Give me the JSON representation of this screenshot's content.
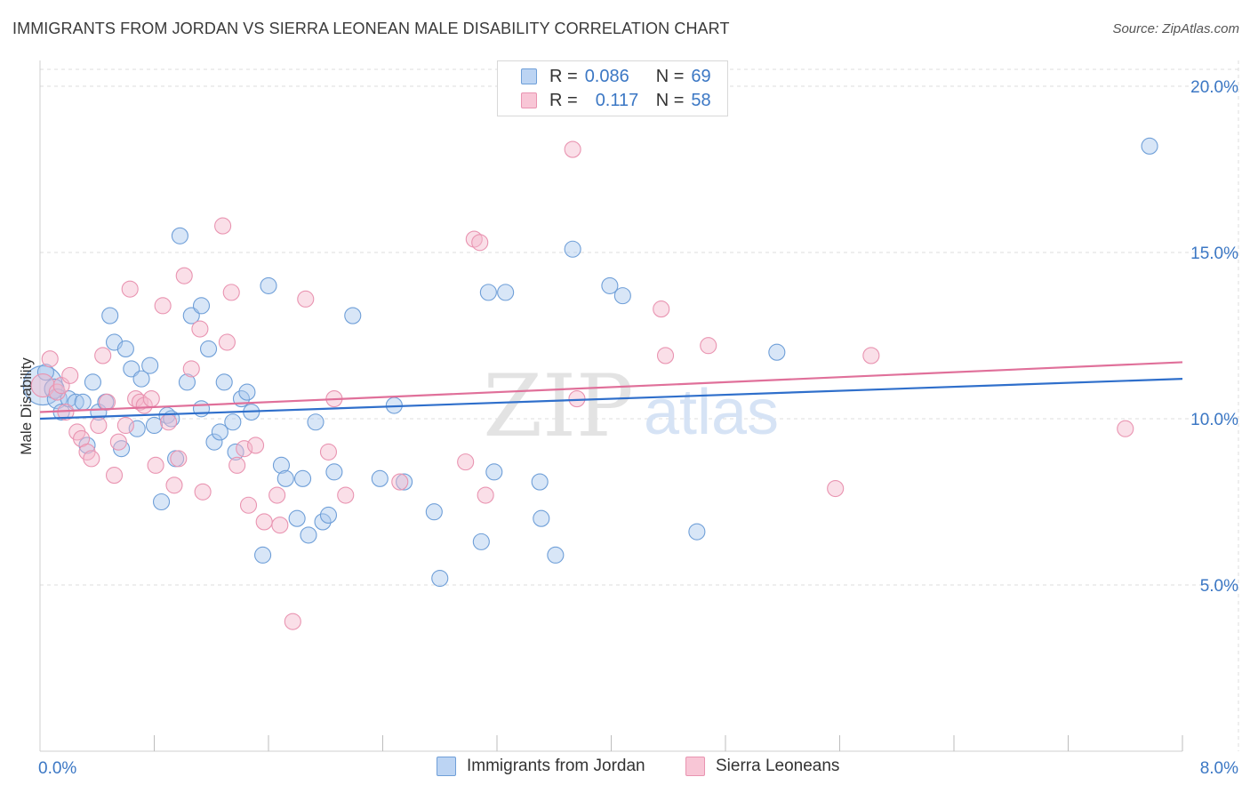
{
  "title": "IMMIGRANTS FROM JORDAN VS SIERRA LEONEAN MALE DISABILITY CORRELATION CHART",
  "source": "Source: ZipAtlas.com",
  "watermark": {
    "zip": "ZIP",
    "atlas": "atlas"
  },
  "legend": {
    "rows": [
      {
        "r_label": "R =",
        "r_value": "0.086",
        "n_label": "N =",
        "n_value": "69"
      },
      {
        "r_label": "R =",
        "r_value": "0.117",
        "n_label": "N =",
        "n_value": "58"
      }
    ]
  },
  "colors": {
    "blue_fill": "#a9c7ee",
    "blue_stroke": "#6f9fd8",
    "blue_line": "#2f6fcb",
    "pink_fill": "#f5b8cb",
    "pink_stroke": "#e994b1",
    "pink_line": "#e0709a",
    "axis_label": "#3b77c4",
    "grid": "#dddddd"
  },
  "chart_data": {
    "type": "scatter",
    "title": "IMMIGRANTS FROM JORDAN VS SIERRA LEONEAN MALE DISABILITY CORRELATION CHART",
    "xlabel": "",
    "ylabel": "Male Disability",
    "xlim": [
      0,
      8
    ],
    "ylim": [
      0,
      20
    ],
    "x_tick_labels": [
      {
        "value": 0,
        "label": "0.0%"
      },
      {
        "value": 8,
        "label": "8.0%"
      }
    ],
    "y_tick_labels": [
      {
        "value": 5,
        "label": "5.0%"
      },
      {
        "value": 10,
        "label": "10.0%"
      },
      {
        "value": 15,
        "label": "15.0%"
      },
      {
        "value": 20,
        "label": "20.0%"
      }
    ],
    "x_minor_ticks": [
      0.8,
      1.6,
      2.4,
      3.2,
      4.0,
      4.8,
      5.6,
      6.4,
      7.2,
      8.0
    ],
    "series": [
      {
        "name": "Immigrants from Jordan",
        "color_key": "blue",
        "r": 0.086,
        "n": 69,
        "trend": {
          "x": [
            0,
            8
          ],
          "y": [
            10.0,
            11.2
          ]
        },
        "points": [
          [
            0.02,
            11.0,
            22
          ],
          [
            0.1,
            10.9,
            11
          ],
          [
            0.12,
            10.6,
            11
          ],
          [
            0.15,
            10.2,
            9
          ],
          [
            0.2,
            10.6,
            9
          ],
          [
            0.25,
            10.5,
            9
          ],
          [
            0.3,
            10.5,
            9
          ],
          [
            0.33,
            9.2,
            9
          ],
          [
            0.37,
            11.1,
            9
          ],
          [
            0.41,
            10.2,
            9
          ],
          [
            0.46,
            10.5,
            9
          ],
          [
            0.49,
            13.1,
            9
          ],
          [
            0.52,
            12.3,
            9
          ],
          [
            0.57,
            9.1,
            9
          ],
          [
            0.6,
            12.1,
            9
          ],
          [
            0.64,
            11.5,
            9
          ],
          [
            0.68,
            9.7,
            9
          ],
          [
            0.71,
            11.2,
            9
          ],
          [
            0.77,
            11.6,
            9
          ],
          [
            0.8,
            9.8,
            9
          ],
          [
            0.85,
            7.5,
            9
          ],
          [
            0.89,
            10.1,
            9
          ],
          [
            0.92,
            10.0,
            9
          ],
          [
            0.95,
            8.8,
            9
          ],
          [
            0.98,
            15.5,
            9
          ],
          [
            1.03,
            11.1,
            9
          ],
          [
            1.06,
            13.1,
            9
          ],
          [
            1.13,
            10.3,
            9
          ],
          [
            1.13,
            13.4,
            9
          ],
          [
            1.18,
            12.1,
            9
          ],
          [
            1.22,
            9.3,
            9
          ],
          [
            1.26,
            9.6,
            9
          ],
          [
            1.29,
            11.1,
            9
          ],
          [
            1.35,
            9.9,
            9
          ],
          [
            1.37,
            9.0,
            9
          ],
          [
            1.41,
            10.6,
            9
          ],
          [
            1.45,
            10.8,
            9
          ],
          [
            1.48,
            10.2,
            9
          ],
          [
            1.6,
            14.0,
            9
          ],
          [
            1.69,
            8.6,
            9
          ],
          [
            1.72,
            8.2,
            9
          ],
          [
            1.8,
            7.0,
            9
          ],
          [
            1.84,
            8.2,
            9
          ],
          [
            1.88,
            6.5,
            9
          ],
          [
            1.93,
            9.9,
            9
          ],
          [
            1.98,
            6.9,
            9
          ],
          [
            2.02,
            7.1,
            9
          ],
          [
            2.06,
            8.4,
            9
          ],
          [
            2.19,
            13.1,
            9
          ],
          [
            2.38,
            8.2,
            9
          ],
          [
            2.48,
            10.4,
            9
          ],
          [
            2.55,
            8.1,
            9
          ],
          [
            2.76,
            7.2,
            9
          ],
          [
            2.8,
            5.2,
            9
          ],
          [
            3.09,
            6.3,
            9
          ],
          [
            3.14,
            13.8,
            9
          ],
          [
            3.18,
            8.4,
            9
          ],
          [
            3.26,
            13.8,
            9
          ],
          [
            3.5,
            8.1,
            9
          ],
          [
            3.51,
            7.0,
            9
          ],
          [
            3.61,
            5.9,
            9
          ],
          [
            3.73,
            15.1,
            9
          ],
          [
            3.99,
            14.0,
            9
          ],
          [
            4.08,
            13.7,
            9
          ],
          [
            4.6,
            6.6,
            9
          ],
          [
            5.16,
            12.0,
            9
          ],
          [
            7.77,
            18.2,
            9
          ],
          [
            0.04,
            11.4,
            9
          ],
          [
            1.56,
            5.9,
            9
          ]
        ]
      },
      {
        "name": "Sierra Leoneans",
        "color_key": "pink",
        "r": 0.117,
        "n": 58,
        "trend": {
          "x": [
            0,
            8
          ],
          "y": [
            10.2,
            11.7
          ]
        },
        "points": [
          [
            0.02,
            11.0,
            13
          ],
          [
            0.07,
            11.8,
            9
          ],
          [
            0.12,
            10.8,
            9
          ],
          [
            0.15,
            11.0,
            9
          ],
          [
            0.18,
            10.2,
            9
          ],
          [
            0.21,
            11.3,
            9
          ],
          [
            0.26,
            9.6,
            9
          ],
          [
            0.29,
            9.4,
            9
          ],
          [
            0.33,
            9.0,
            9
          ],
          [
            0.36,
            8.8,
            9
          ],
          [
            0.41,
            9.8,
            9
          ],
          [
            0.44,
            11.9,
            9
          ],
          [
            0.47,
            10.5,
            9
          ],
          [
            0.52,
            8.3,
            9
          ],
          [
            0.55,
            9.3,
            9
          ],
          [
            0.6,
            9.8,
            9
          ],
          [
            0.63,
            13.9,
            9
          ],
          [
            0.67,
            10.6,
            9
          ],
          [
            0.7,
            10.5,
            9
          ],
          [
            0.73,
            10.4,
            9
          ],
          [
            0.78,
            10.6,
            9
          ],
          [
            0.81,
            8.6,
            9
          ],
          [
            0.86,
            13.4,
            9
          ],
          [
            0.9,
            9.9,
            9
          ],
          [
            0.94,
            8.0,
            9
          ],
          [
            0.97,
            8.8,
            9
          ],
          [
            1.01,
            14.3,
            9
          ],
          [
            1.06,
            11.5,
            9
          ],
          [
            1.12,
            12.7,
            9
          ],
          [
            1.14,
            7.8,
            9
          ],
          [
            1.28,
            15.8,
            9
          ],
          [
            1.31,
            12.3,
            9
          ],
          [
            1.34,
            13.8,
            9
          ],
          [
            1.38,
            8.6,
            9
          ],
          [
            1.43,
            9.1,
            9
          ],
          [
            1.46,
            7.4,
            9
          ],
          [
            1.51,
            9.2,
            9
          ],
          [
            1.57,
            6.9,
            9
          ],
          [
            1.66,
            7.7,
            9
          ],
          [
            1.68,
            6.8,
            9
          ],
          [
            1.77,
            3.9,
            9
          ],
          [
            1.86,
            13.6,
            9
          ],
          [
            2.02,
            9.0,
            9
          ],
          [
            2.06,
            10.6,
            9
          ],
          [
            2.14,
            7.7,
            9
          ],
          [
            2.52,
            8.1,
            9
          ],
          [
            2.98,
            8.7,
            9
          ],
          [
            3.04,
            15.4,
            9
          ],
          [
            3.08,
            15.3,
            9
          ],
          [
            3.12,
            7.7,
            9
          ],
          [
            3.73,
            18.1,
            9
          ],
          [
            3.76,
            10.6,
            9
          ],
          [
            4.35,
            13.3,
            9
          ],
          [
            4.38,
            11.9,
            9
          ],
          [
            4.68,
            12.2,
            9
          ],
          [
            5.57,
            7.9,
            9
          ],
          [
            5.82,
            11.9,
            9
          ],
          [
            7.6,
            9.7,
            9
          ]
        ]
      }
    ]
  }
}
